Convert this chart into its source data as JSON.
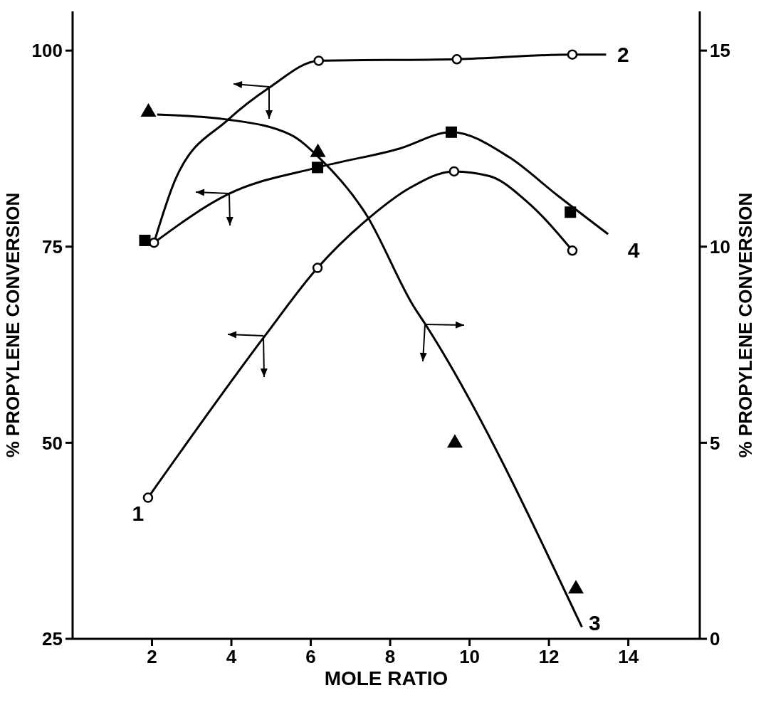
{
  "chart_data": {
    "type": "line",
    "xlabel": "MOLE RATIO",
    "ylabel": "% PROPYLENE CONVERSION",
    "y2label": "% PROPYLENE CONVERSION",
    "xlim": [
      0,
      15.8
    ],
    "xticks": [
      2,
      4,
      6,
      8,
      10,
      12,
      14
    ],
    "ylim": [
      25,
      105
    ],
    "yticks": [
      25,
      50,
      75,
      100
    ],
    "y2lim": [
      0,
      16
    ],
    "y2ticks": [
      0,
      5,
      10,
      15
    ],
    "grid": false,
    "legend": false,
    "series": [
      {
        "name": "1",
        "color": "#000000",
        "marker": "none",
        "x": [
          1.9,
          4.84,
          6.17,
          7.5,
          8.5,
          9.61,
          10.5,
          11.5,
          12.59
        ],
        "values": [
          43,
          63.6,
          72.3,
          78.8,
          82.5,
          84.6,
          84,
          80.5,
          74.5
        ]
      },
      {
        "name": "2",
        "color": "#000000",
        "marker": "none",
        "x": [
          2.05,
          2.6,
          3.92,
          4.96,
          6.2,
          9.68,
          12.59,
          13.44
        ],
        "values": [
          75.5,
          83.7,
          91.2,
          95.3,
          98.7,
          98.9,
          99.5,
          99.5
        ]
      },
      {
        "name": "3",
        "axis": "y2",
        "color": "#000000",
        "marker": "none",
        "x": [
          2.13,
          3.92,
          5.5,
          6.2,
          7.39,
          8.59,
          8.9,
          12.83
        ],
        "values": [
          13.37,
          13.24,
          12.85,
          12.28,
          10.83,
          8.48,
          8.0,
          0.3
        ]
      },
      {
        "name": "4",
        "color": "#000000",
        "marker": "none",
        "x": [
          2.05,
          3.92,
          6.17,
          8.23,
          9.54,
          11,
          12.2,
          13.49
        ],
        "values": [
          75.5,
          81.7,
          85.1,
          87.5,
          89.6,
          86.4,
          81.6,
          76.6
        ]
      },
      {
        "type": "scatter",
        "color": "#000000",
        "marker": "circle",
        "x": [
          1.9,
          6.17,
          9.61,
          12.59
        ],
        "values": [
          43,
          72.3,
          84.6,
          74.5
        ]
      },
      {
        "type": "scatter",
        "color": "#000000",
        "marker": "circle",
        "x": [
          2.05,
          6.2,
          9.68,
          12.59
        ],
        "values": [
          75.5,
          98.7,
          98.9,
          99.5
        ]
      },
      {
        "type": "scatter",
        "axis": "y2",
        "color": "#000000",
        "marker": "triangle",
        "x": [
          1.91,
          6.18,
          9.63,
          12.68
        ],
        "values": [
          13.46,
          12.43,
          5.02,
          1.3
        ]
      },
      {
        "type": "scatter",
        "color": "#000000",
        "marker": "square",
        "x": [
          1.82,
          6.17,
          9.54,
          12.54
        ],
        "values": [
          75.8,
          85.1,
          89.6,
          79.4
        ]
      }
    ]
  }
}
